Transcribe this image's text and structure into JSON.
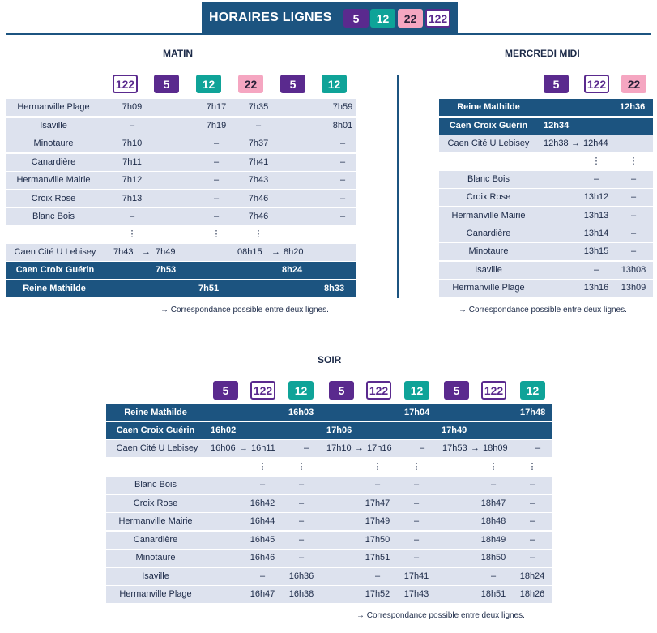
{
  "header": {
    "title": "HORAIRES LIGNES",
    "badges": [
      "5",
      "12",
      "22",
      "122"
    ]
  },
  "matin": {
    "title": "MATIN",
    "badges": [
      "122",
      "5",
      "12",
      "22",
      "5",
      "12"
    ],
    "upper": [
      {
        "stop": "Hermanville Plage",
        "times": [
          "7h09",
          "",
          "7h17",
          "7h35",
          "",
          "7h59"
        ]
      },
      {
        "stop": "Isaville",
        "times": [
          "–",
          "",
          "7h19",
          "–",
          "",
          "8h01"
        ]
      },
      {
        "stop": "Minotaure",
        "times": [
          "7h10",
          "",
          "–",
          "7h37",
          "",
          "–"
        ]
      },
      {
        "stop": "Canardière",
        "times": [
          "7h11",
          "",
          "–",
          "7h41",
          "",
          "–"
        ]
      },
      {
        "stop": "Hermanville Mairie",
        "times": [
          "7h12",
          "",
          "–",
          "7h43",
          "",
          "–"
        ]
      },
      {
        "stop": "Croix Rose",
        "times": [
          "7h13",
          "",
          "–",
          "7h46",
          "",
          "–"
        ]
      },
      {
        "stop": "Blanc Bois",
        "times": [
          "–",
          "",
          "–",
          "7h46",
          "",
          "–"
        ]
      }
    ],
    "dots": "⋮",
    "lebisey": {
      "stop": "Caen Cité U Lebisey",
      "t1": "7h43",
      "t2": "7h49",
      "t3": "08h15",
      "t4": "8h20",
      "arrow": "→"
    },
    "croix_guerin": {
      "stop": "Caen Croix Guérin",
      "t1": "7h53",
      "t2": "8h24"
    },
    "reine": {
      "stop": "Reine Mathilde",
      "t1": "7h51",
      "t2": "8h33"
    },
    "note": "→ Correspondance possible entre deux lignes."
  },
  "mercredi": {
    "title": "MERCREDI MIDI",
    "badges": [
      "5",
      "122",
      "22"
    ],
    "reine": {
      "stop": "Reine Mathilde",
      "t1": "12h36"
    },
    "croix_guerin": {
      "stop": "Caen Croix Guérin",
      "t1": "12h34"
    },
    "lebisey": {
      "stop": "Caen Cité U Lebisey",
      "t1": "12h38",
      "t2": "12h44",
      "arrow": "→"
    },
    "dots": "⋮",
    "lower": [
      {
        "stop": "Blanc Bois",
        "times": [
          "–",
          "–"
        ]
      },
      {
        "stop": "Croix Rose",
        "times": [
          "13h12",
          "–"
        ]
      },
      {
        "stop": "Hermanville Mairie",
        "times": [
          "13h13",
          "–"
        ]
      },
      {
        "stop": "Canardière",
        "times": [
          "13h14",
          "–"
        ]
      },
      {
        "stop": "Minotaure",
        "times": [
          "13h15",
          "–"
        ]
      },
      {
        "stop": "Isaville",
        "times": [
          "–",
          "13h08"
        ]
      },
      {
        "stop": "Hermanville Plage",
        "times": [
          "13h16",
          "13h09"
        ]
      }
    ],
    "note": "→ Correspondance possible entre deux lignes."
  },
  "soir": {
    "title": "SOIR",
    "badges": [
      "5",
      "122",
      "12",
      "5",
      "122",
      "12",
      "5",
      "122",
      "12"
    ],
    "reine": {
      "stop": "Reine Mathilde",
      "times": [
        "16h03",
        "17h04",
        "17h48"
      ]
    },
    "croix_guerin": {
      "stop": "Caen Croix Guérin",
      "times": [
        "16h02",
        "17h06",
        "17h49"
      ]
    },
    "lebisey": {
      "stop": "Caen Cité U Lebisey",
      "groups": [
        {
          "a": "16h06",
          "b": "16h11",
          "c": "–"
        },
        {
          "a": "17h10",
          "b": "17h16",
          "c": "–"
        },
        {
          "a": "17h53",
          "b": "18h09",
          "c": "–"
        }
      ],
      "arrow": "→"
    },
    "dots": "⋮",
    "lower": [
      {
        "stop": "Blanc Bois",
        "times": [
          "–",
          "–",
          "–",
          "–",
          "–",
          "–"
        ]
      },
      {
        "stop": "Croix Rose",
        "times": [
          "16h42",
          "–",
          "17h47",
          "–",
          "18h47",
          "–"
        ]
      },
      {
        "stop": "Hermanville Mairie",
        "times": [
          "16h44",
          "–",
          "17h49",
          "–",
          "18h48",
          "–"
        ]
      },
      {
        "stop": "Canardière",
        "times": [
          "16h45",
          "–",
          "17h50",
          "–",
          "18h49",
          "–"
        ]
      },
      {
        "stop": "Minotaure",
        "times": [
          "16h46",
          "–",
          "17h51",
          "–",
          "18h50",
          "–"
        ]
      },
      {
        "stop": "Isaville",
        "times": [
          "–",
          "16h36",
          "–",
          "17h41",
          "–",
          "18h24"
        ]
      },
      {
        "stop": "Hermanville Plage",
        "times": [
          "16h47",
          "16h38",
          "17h52",
          "17h43",
          "18h51",
          "18h26"
        ]
      }
    ],
    "note": "→ Correspondance possible entre deux lignes."
  },
  "colors": {
    "dark_blue": "#1c5480",
    "light_row": "#dde2ee",
    "line5": "#5a2a8e",
    "line12": "#0fa398",
    "line22": "#f5a6c1",
    "line122": "#5a2a8e"
  }
}
